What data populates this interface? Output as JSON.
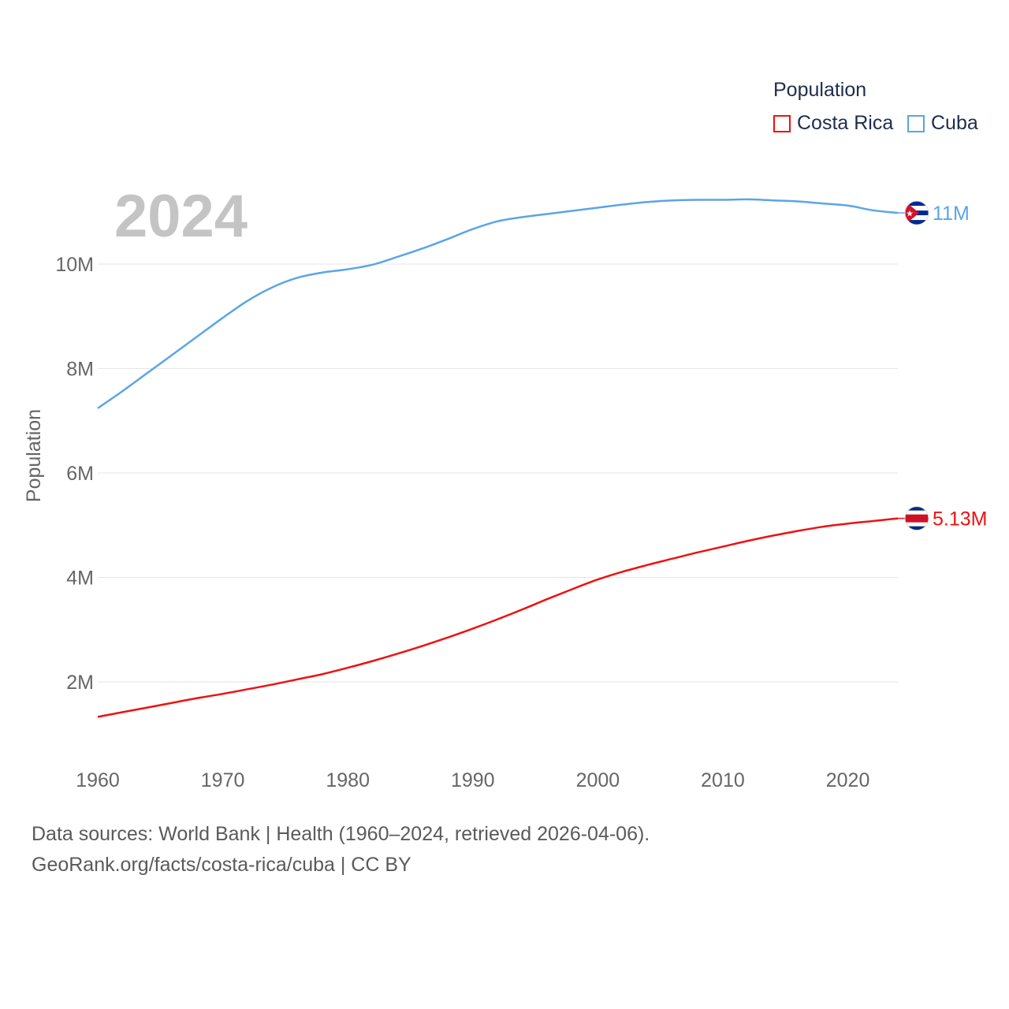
{
  "legend": {
    "title": "Population"
  },
  "footer": {
    "line1": "Data sources: World Bank | Health (1960–2024, retrieved 2026-04-06).",
    "line2": "GeoRank.org/facts/costa-rica/cuba | CC BY"
  },
  "chart_data": {
    "type": "line",
    "title": "Population",
    "year_label": "2024",
    "xlabel": "",
    "ylabel": "Population",
    "xlim": [
      1960,
      2024
    ],
    "ylim": [
      700000,
      11800000
    ],
    "x_ticks": [
      1960,
      1970,
      1980,
      1990,
      2000,
      2010,
      2020
    ],
    "y_ticks": [
      {
        "value": 2000000,
        "label": "2M"
      },
      {
        "value": 4000000,
        "label": "4M"
      },
      {
        "value": 6000000,
        "label": "6M"
      },
      {
        "value": 8000000,
        "label": "8M"
      },
      {
        "value": 10000000,
        "label": "10M"
      }
    ],
    "grid": true,
    "legend_position": "top-right",
    "series": [
      {
        "name": "Costa Rica",
        "color": "#ee1111",
        "end_label": "5.13M",
        "flag": "costa-rica-flag-icon",
        "x": [
          1960,
          1962,
          1964,
          1966,
          1968,
          1970,
          1972,
          1974,
          1976,
          1978,
          1980,
          1982,
          1984,
          1986,
          1988,
          1990,
          1992,
          1994,
          1996,
          1998,
          2000,
          2002,
          2004,
          2006,
          2008,
          2010,
          2012,
          2014,
          2016,
          2018,
          2020,
          2022,
          2024
        ],
        "values": [
          1330000,
          1420000,
          1510000,
          1600000,
          1690000,
          1770000,
          1860000,
          1950000,
          2050000,
          2150000,
          2270000,
          2400000,
          2540000,
          2690000,
          2850000,
          3020000,
          3200000,
          3390000,
          3590000,
          3780000,
          3960000,
          4110000,
          4240000,
          4360000,
          4480000,
          4590000,
          4700000,
          4800000,
          4890000,
          4970000,
          5030000,
          5080000,
          5130000
        ]
      },
      {
        "name": "Cuba",
        "color": "#5ba5e6",
        "end_label": "11M",
        "flag": "cuba-flag-icon",
        "x": [
          1960,
          1962,
          1964,
          1966,
          1968,
          1970,
          1972,
          1974,
          1976,
          1978,
          1980,
          1982,
          1984,
          1986,
          1988,
          1990,
          1992,
          1994,
          1996,
          1998,
          2000,
          2002,
          2004,
          2006,
          2008,
          2010,
          2012,
          2014,
          2016,
          2018,
          2020,
          2022,
          2024
        ],
        "values": [
          7240000,
          7570000,
          7920000,
          8270000,
          8620000,
          8970000,
          9300000,
          9560000,
          9740000,
          9840000,
          9900000,
          9990000,
          10140000,
          10300000,
          10480000,
          10670000,
          10820000,
          10900000,
          10960000,
          11020000,
          11080000,
          11140000,
          11190000,
          11220000,
          11230000,
          11230000,
          11240000,
          11220000,
          11200000,
          11160000,
          11120000,
          11030000,
          10980000
        ]
      }
    ]
  }
}
